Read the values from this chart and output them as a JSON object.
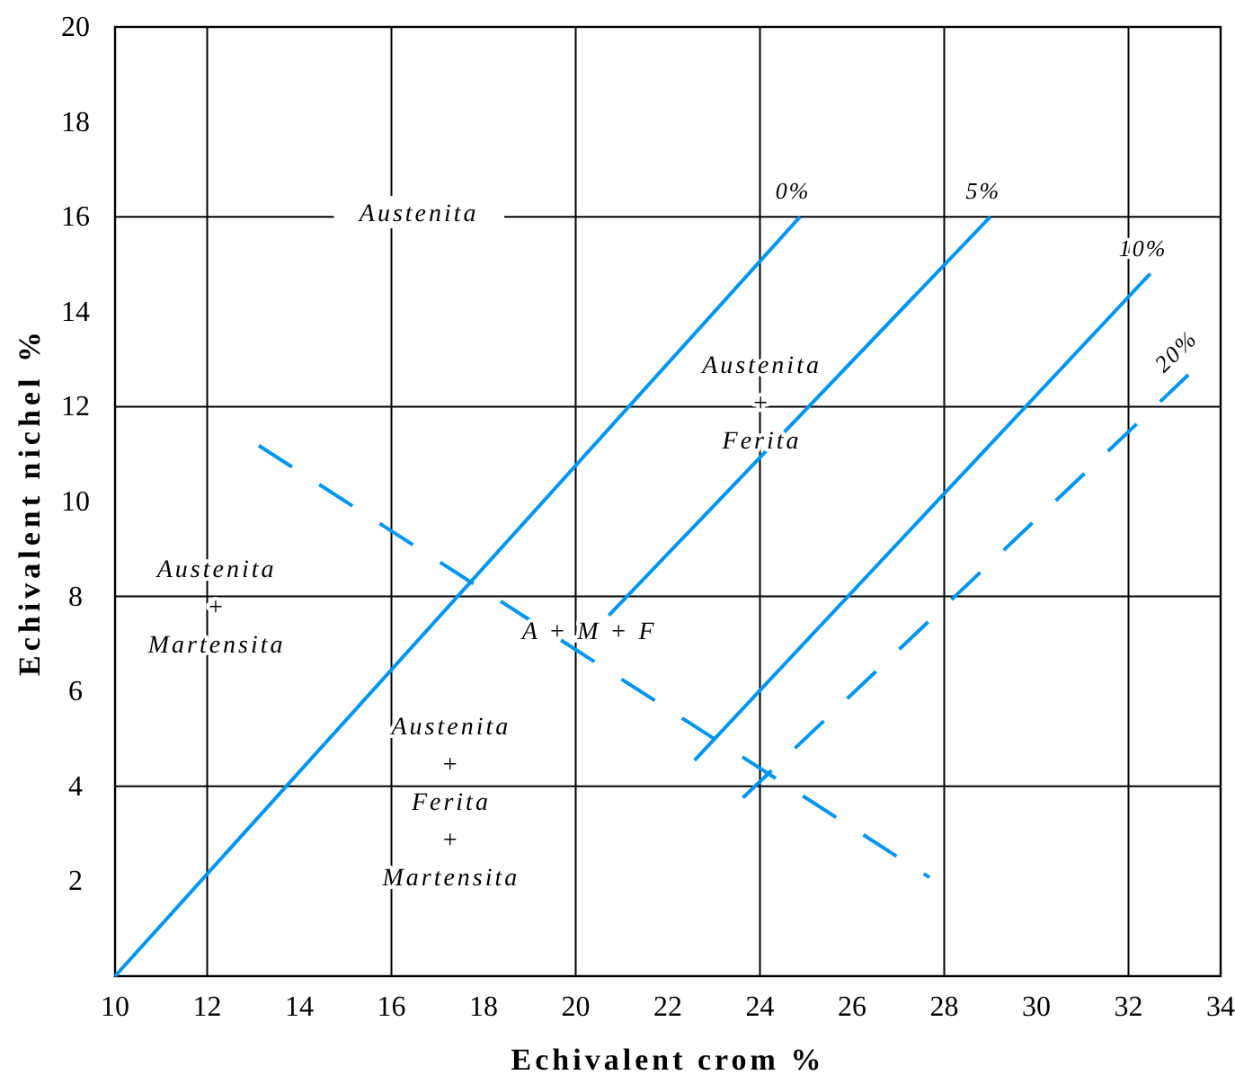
{
  "chart_data": {
    "type": "line",
    "xlabel": "Echivalent crom %",
    "ylabel": "Echivalent nichel %",
    "xlim": [
      10,
      34
    ],
    "ylim": [
      0,
      20
    ],
    "xticks": [
      10,
      12,
      14,
      16,
      18,
      20,
      22,
      24,
      26,
      28,
      30,
      32,
      34
    ],
    "yticks": [
      2,
      4,
      6,
      8,
      10,
      12,
      14,
      16,
      18,
      20
    ],
    "grid": true,
    "series": [
      {
        "name": "0%",
        "color": "#0095ee",
        "line_style": "solid",
        "x": [
          10,
          24.87
        ],
        "values": [
          0,
          16
        ]
      },
      {
        "name": "5%",
        "color": "#0095ee",
        "line_style": "solid",
        "x": [
          20.72,
          29.0
        ],
        "values": [
          7.6,
          16
        ]
      },
      {
        "name": "10%",
        "color": "#0095ee",
        "line_style": "solid",
        "x": [
          22.58,
          32.47
        ],
        "values": [
          4.55,
          14.8
        ]
      },
      {
        "name": "20%",
        "color": "#0095ee",
        "line_style": "dashed",
        "x": [
          23.63,
          33.3
        ],
        "values": [
          3.76,
          12.67
        ]
      },
      {
        "color": "#0095ee",
        "line_style": "dashed",
        "x": [
          13.12,
          27.68
        ],
        "values": [
          11.18,
          2.08
        ]
      }
    ],
    "annotations": [
      "Austenita",
      "Austenita\n+\nFerita",
      "Austenita\n+\nMartensita",
      "A + M + F",
      "Austenita\n+\nFerita\n+\nMartensita"
    ]
  }
}
